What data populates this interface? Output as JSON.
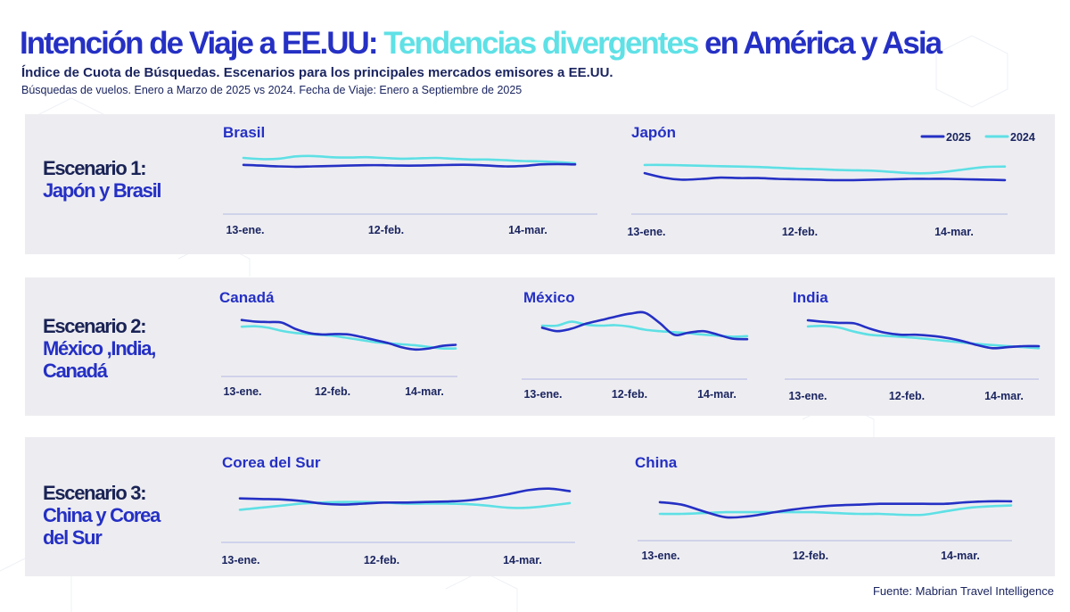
{
  "title": {
    "part1": "Intención de Viaje a EE.UU:",
    "part2": "Tendencias divergentes",
    "part3": "en América y Asia"
  },
  "subtitle": "Índice de Cuota de Búsquedas. Escenarios para los principales mercados emisores a EE.UU.",
  "note": "Búsquedas de vuelos. Enero a Marzo de 2025 vs 2024. Fecha de Viaje: Enero a Septiembre de 2025",
  "source": "Fuente: Mabrian Travel Intelligence",
  "colors": {
    "s2025": "#2530c4",
    "s2024": "#5ee0e5",
    "axis": "#bfc3e6",
    "panel": "#ededf1"
  },
  "legend": {
    "s2025": "2025",
    "s2024": "2024"
  },
  "scenarios": [
    {
      "name": "Escenario 1:",
      "desc": [
        "Japón y Brasil"
      ]
    },
    {
      "name": "Escenario 2:",
      "desc": [
        "México ,India,",
        "Canadá"
      ]
    },
    {
      "name": "Escenario 3:",
      "desc": [
        "China y Corea",
        "del Sur"
      ]
    }
  ],
  "chart_data": [
    {
      "type": "line",
      "title": "Brasil",
      "xticks": [
        "13-ene.",
        "12-feb.",
        "14-mar."
      ],
      "x_range": [
        "13-ene.",
        "12-abr."
      ],
      "y_axis": "none (no labels)",
      "series": [
        {
          "name": "2025",
          "values": [
            0.54,
            0.52,
            0.5,
            0.49,
            0.5,
            0.51,
            0.52,
            0.53,
            0.53,
            0.52,
            0.52,
            0.53,
            0.54,
            0.54,
            0.52,
            0.5,
            0.51,
            0.55,
            0.56,
            0.55
          ]
        },
        {
          "name": "2024",
          "values": [
            0.72,
            0.69,
            0.7,
            0.76,
            0.77,
            0.74,
            0.73,
            0.74,
            0.72,
            0.7,
            0.71,
            0.72,
            0.7,
            0.68,
            0.68,
            0.66,
            0.64,
            0.63,
            0.61,
            0.58
          ]
        }
      ]
    },
    {
      "type": "line",
      "title": "Japón",
      "xticks": [
        "13-ene.",
        "12-feb.",
        "14-mar."
      ],
      "x_range": [
        "13-ene.",
        "12-abr."
      ],
      "y_axis": "none (no labels)",
      "series": [
        {
          "name": "2025",
          "values": [
            0.52,
            0.41,
            0.36,
            0.38,
            0.41,
            0.4,
            0.4,
            0.38,
            0.37,
            0.36,
            0.35,
            0.35,
            0.36,
            0.37,
            0.38,
            0.38,
            0.38,
            0.37,
            0.36,
            0.35
          ]
        },
        {
          "name": "2024",
          "values": [
            0.72,
            0.72,
            0.71,
            0.7,
            0.69,
            0.68,
            0.67,
            0.65,
            0.63,
            0.62,
            0.6,
            0.59,
            0.58,
            0.55,
            0.52,
            0.52,
            0.56,
            0.62,
            0.67,
            0.68
          ]
        }
      ]
    },
    {
      "type": "line",
      "title": "Canadá",
      "xticks": [
        "13-ene.",
        "12-feb.",
        "14-mar."
      ],
      "x_range": [
        "13-ene.",
        "12-abr."
      ],
      "y_axis": "none (no labels)",
      "series": [
        {
          "name": "2025",
          "values": [
            0.85,
            0.82,
            0.81,
            0.8,
            0.68,
            0.6,
            0.57,
            0.58,
            0.57,
            0.52,
            0.46,
            0.4,
            0.32,
            0.28,
            0.3,
            0.35,
            0.37
          ]
        },
        {
          "name": "2024",
          "values": [
            0.72,
            0.73,
            0.7,
            0.64,
            0.6,
            0.58,
            0.56,
            0.54,
            0.5,
            0.46,
            0.42,
            0.4,
            0.38,
            0.36,
            0.33,
            0.3,
            0.3
          ]
        }
      ]
    },
    {
      "type": "line",
      "title": "México",
      "xticks": [
        "13-ene.",
        "12-feb.",
        "14-mar."
      ],
      "x_range": [
        "13-ene.",
        "12-abr."
      ],
      "y_axis": "none (no labels)",
      "series": [
        {
          "name": "2025",
          "values": [
            0.62,
            0.55,
            0.6,
            0.7,
            0.77,
            0.84,
            0.9,
            0.92,
            0.72,
            0.48,
            0.52,
            0.55,
            0.48,
            0.4,
            0.39
          ]
        },
        {
          "name": "2024",
          "values": [
            0.66,
            0.66,
            0.74,
            0.68,
            0.66,
            0.67,
            0.64,
            0.58,
            0.55,
            0.53,
            0.51,
            0.48,
            0.46,
            0.44,
            0.45
          ]
        }
      ]
    },
    {
      "type": "line",
      "title": "India",
      "xticks": [
        "13-ene.",
        "12-feb.",
        "14-mar."
      ],
      "x_range": [
        "13-ene.",
        "12-abr."
      ],
      "y_axis": "none (no labels)",
      "series": [
        {
          "name": "2025",
          "values": [
            0.88,
            0.85,
            0.83,
            0.82,
            0.72,
            0.64,
            0.6,
            0.6,
            0.58,
            0.54,
            0.48,
            0.4,
            0.34,
            0.36,
            0.38,
            0.38
          ]
        },
        {
          "name": "2024",
          "values": [
            0.76,
            0.77,
            0.74,
            0.66,
            0.6,
            0.58,
            0.56,
            0.54,
            0.51,
            0.48,
            0.45,
            0.42,
            0.4,
            0.38,
            0.36,
            0.34
          ]
        }
      ]
    },
    {
      "type": "line",
      "title": "Corea del Sur",
      "xticks": [
        "13-ene.",
        "12-feb.",
        "14-mar."
      ],
      "x_range": [
        "13-ene.",
        "12-abr."
      ],
      "y_axis": "none (no labels)",
      "series": [
        {
          "name": "2025",
          "values": [
            0.54,
            0.53,
            0.52,
            0.49,
            0.44,
            0.42,
            0.44,
            0.46,
            0.46,
            0.47,
            0.48,
            0.5,
            0.55,
            0.62,
            0.7,
            0.73,
            0.68
          ]
        },
        {
          "name": "2024",
          "values": [
            0.32,
            0.36,
            0.4,
            0.44,
            0.46,
            0.47,
            0.47,
            0.46,
            0.44,
            0.44,
            0.44,
            0.43,
            0.4,
            0.36,
            0.36,
            0.4,
            0.45
          ]
        }
      ]
    },
    {
      "type": "line",
      "title": "China",
      "xticks": [
        "13-ene.",
        "12-feb.",
        "14-mar."
      ],
      "x_range": [
        "13-ene.",
        "12-abr."
      ],
      "y_axis": "none (no labels)",
      "series": [
        {
          "name": "2025",
          "values": [
            0.62,
            0.56,
            0.4,
            0.26,
            0.28,
            0.36,
            0.44,
            0.5,
            0.54,
            0.56,
            0.58,
            0.58,
            0.58,
            0.58,
            0.62,
            0.64,
            0.64
          ]
        },
        {
          "name": "2024",
          "values": [
            0.34,
            0.34,
            0.36,
            0.38,
            0.38,
            0.38,
            0.38,
            0.38,
            0.36,
            0.34,
            0.34,
            0.32,
            0.32,
            0.4,
            0.48,
            0.52,
            0.54
          ]
        }
      ]
    }
  ]
}
